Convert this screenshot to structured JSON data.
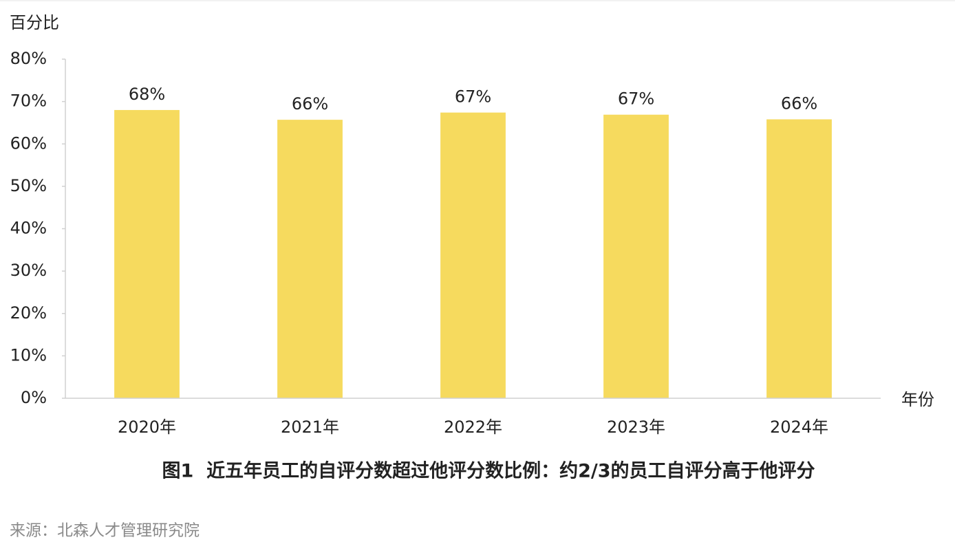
{
  "chart_data": {
    "type": "bar",
    "y_axis_label": "百分比",
    "x_axis_label": "年份",
    "categories": [
      "2020年",
      "2021年",
      "2022年",
      "2023年",
      "2024年"
    ],
    "values": [
      68,
      65.7,
      67.4,
      66.9,
      65.8
    ],
    "value_labels": [
      "68%",
      "66%",
      "67%",
      "67%",
      "66%"
    ],
    "color": "#f6da5e",
    "ylim": [
      0,
      80
    ],
    "yticks": [
      {
        "value": 0,
        "label": "0%"
      },
      {
        "value": 10,
        "label": "10%"
      },
      {
        "value": 20,
        "label": "20%"
      },
      {
        "value": 30,
        "label": "30%"
      },
      {
        "value": 40,
        "label": "40%"
      },
      {
        "value": 50,
        "label": "50%"
      },
      {
        "value": 60,
        "label": "60%"
      },
      {
        "value": 70,
        "label": "70%"
      },
      {
        "value": 80,
        "label": "80%"
      }
    ],
    "grid": false,
    "caption": "图1  近五年员工的自评分数超过他评分数比例：约2/3的员工自评分高于他评分",
    "source": "来源：北森人才管理研究院"
  }
}
